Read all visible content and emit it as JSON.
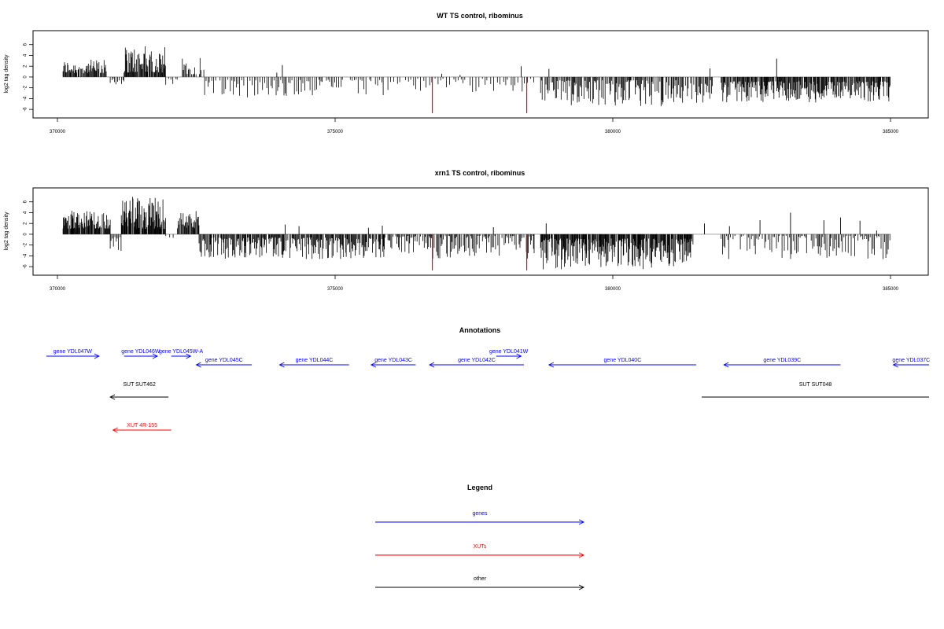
{
  "chart_data": [
    {
      "type": "bar",
      "title": "WT TS control, ribominus",
      "xlabel": "",
      "ylabel": "log2 tag density",
      "xlim": [
        370000,
        385000
      ],
      "ylim": [
        -7,
        8
      ],
      "x_ticks": [
        "370000",
        "375000",
        "380000",
        "385000"
      ],
      "y_ticks": [
        "6",
        "4",
        "2",
        "0",
        "-2",
        "-4",
        "-6"
      ],
      "bar_color": "#000000",
      "highlight_color": "#ff0000",
      "segments": [
        {
          "from": 370100,
          "to": 370880,
          "sign": 1,
          "min": 0.7,
          "max": 3.2,
          "density": 1.2
        },
        {
          "from": 370950,
          "to": 371200,
          "sign": -1,
          "min": 0.3,
          "max": 2.5,
          "density": 0.5
        },
        {
          "from": 371200,
          "to": 371950,
          "sign": 1,
          "min": 0.8,
          "max": 5.8,
          "density": 1.5
        },
        {
          "from": 371950,
          "to": 372200,
          "sign": -1,
          "min": 0.3,
          "max": 1.6,
          "density": 0.4
        },
        {
          "from": 372250,
          "to": 372650,
          "sign": 1,
          "min": 0.5,
          "max": 3.6,
          "density": 0.8
        },
        {
          "from": 372650,
          "to": 375900,
          "sign": -1,
          "min": 0.5,
          "max": 3.8,
          "density": 0.45
        },
        {
          "from": 375950,
          "to": 378600,
          "sign": -1,
          "min": 0.3,
          "max": 2.8,
          "density": 0.3
        },
        {
          "from": 378700,
          "to": 381800,
          "sign": -1,
          "min": 0.6,
          "max": 5.5,
          "density": 0.9
        },
        {
          "from": 381950,
          "to": 385000,
          "sign": -1,
          "min": 0.8,
          "max": 4.8,
          "density": 1.3
        }
      ],
      "extra_bars": [
        {
          "x": 374050,
          "y": 2.2
        },
        {
          "x": 373950,
          "y": 0.8
        },
        {
          "x": 376920,
          "y": 0.6
        },
        {
          "x": 377250,
          "y": 0.4
        },
        {
          "x": 378350,
          "y": 2.0
        },
        {
          "x": 378850,
          "y": 1.5
        },
        {
          "x": 381750,
          "y": 1.6
        },
        {
          "x": 382950,
          "y": 3.4
        }
      ],
      "highlights": [
        {
          "x": 376750,
          "y": -6.7
        },
        {
          "x": 378450,
          "y": -6.7
        }
      ]
    },
    {
      "type": "bar",
      "title": "xrn1 TS control, ribominus",
      "xlabel": "",
      "ylabel": "log2 tag density",
      "xlim": [
        370000,
        385000
      ],
      "ylim": [
        -7,
        8
      ],
      "x_ticks": [
        "370000",
        "375000",
        "380000",
        "385000"
      ],
      "y_ticks": [
        "6",
        "4",
        "2",
        "0",
        "-2",
        "-4",
        "-6"
      ],
      "bar_color": "#000000",
      "highlight_color": "#ff0000",
      "segments": [
        {
          "from": 370100,
          "to": 370950,
          "sign": 1,
          "min": 1.0,
          "max": 4.4,
          "density": 1.6
        },
        {
          "from": 370950,
          "to": 371150,
          "sign": -1,
          "min": 0.5,
          "max": 3.2,
          "density": 0.8
        },
        {
          "from": 371150,
          "to": 371950,
          "sign": 1,
          "min": 1.0,
          "max": 7.0,
          "density": 1.8
        },
        {
          "from": 371950,
          "to": 372100,
          "sign": -1,
          "min": 0.3,
          "max": 1.5,
          "density": 0.5
        },
        {
          "from": 372150,
          "to": 372550,
          "sign": 1,
          "min": 1.0,
          "max": 4.6,
          "density": 1.4
        },
        {
          "from": 372550,
          "to": 375900,
          "sign": -1,
          "min": 0.6,
          "max": 4.6,
          "density": 1.2
        },
        {
          "from": 375950,
          "to": 378600,
          "sign": -1,
          "min": 0.3,
          "max": 4.5,
          "density": 0.8
        },
        {
          "from": 378700,
          "to": 381450,
          "sign": -1,
          "min": 0.8,
          "max": 6.5,
          "density": 1.6
        },
        {
          "from": 381950,
          "to": 385000,
          "sign": -1,
          "min": 0.3,
          "max": 4.6,
          "density": 0.6
        }
      ],
      "extra_bars": [
        {
          "x": 374100,
          "y": 1.8
        },
        {
          "x": 374350,
          "y": 1.5
        },
        {
          "x": 375600,
          "y": 1.2
        },
        {
          "x": 375850,
          "y": 1.6
        },
        {
          "x": 377850,
          "y": 1.3
        },
        {
          "x": 378800,
          "y": 2.0
        },
        {
          "x": 381650,
          "y": 2.0
        },
        {
          "x": 382100,
          "y": 1.5
        },
        {
          "x": 382650,
          "y": 2.6
        },
        {
          "x": 383200,
          "y": 4.0
        },
        {
          "x": 383800,
          "y": 2.6
        },
        {
          "x": 384100,
          "y": 3.1
        },
        {
          "x": 384450,
          "y": 2.5
        },
        {
          "x": 384750,
          "y": 0.7
        }
      ],
      "highlights": [
        {
          "x": 376750,
          "y": -6.7
        },
        {
          "x": 378450,
          "y": -6.7
        }
      ]
    }
  ],
  "annotations": {
    "title": "Annotations",
    "genes": [
      {
        "label": "gene YDL047W",
        "start": 369800,
        "end": 370750,
        "dir": "+",
        "row": 0
      },
      {
        "label": "gene YDL046W",
        "start": 371200,
        "end": 371800,
        "dir": "+",
        "row": 0
      },
      {
        "label": "gene YDL045W-A",
        "start": 372050,
        "end": 372400,
        "dir": "+",
        "row": 0
      },
      {
        "label": "gene YDL041W",
        "start": 377900,
        "end": 378350,
        "dir": "+",
        "row": 0
      },
      {
        "label": "gene YDL045C",
        "start": 372500,
        "end": 373500,
        "dir": "-",
        "row": 1
      },
      {
        "label": "gene YDL044C",
        "start": 374000,
        "end": 375250,
        "dir": "-",
        "row": 1
      },
      {
        "label": "gene YDL043C",
        "start": 375650,
        "end": 376450,
        "dir": "-",
        "row": 1
      },
      {
        "label": "gene YDL042C",
        "start": 376700,
        "end": 378400,
        "dir": "-",
        "row": 1
      },
      {
        "label": "gene YDL040C",
        "start": 378850,
        "end": 381500,
        "dir": "-",
        "row": 1
      },
      {
        "label": "gene YDL039C",
        "start": 382000,
        "end": 384100,
        "dir": "-",
        "row": 1
      },
      {
        "label": "gene YDL037C",
        "start": 385050,
        "end": 386000,
        "dir": "-",
        "row": 1
      }
    ],
    "suts": [
      {
        "label": "SUT SUT462",
        "start": 370950,
        "end": 372000,
        "dir": "-",
        "row": 2
      },
      {
        "label": "SUT SUT048",
        "start": 381600,
        "end": 386100,
        "dir": "none",
        "row": 2
      }
    ],
    "xuts": [
      {
        "label": "XUT 4R-155",
        "start": 371000,
        "end": 372050,
        "dir": "-",
        "row": 3
      }
    ]
  },
  "legend": {
    "title": "Legend",
    "items": [
      {
        "label": "genes",
        "color": "#0000ff"
      },
      {
        "label": "XUTs",
        "color": "#ff0000"
      },
      {
        "label": "other",
        "color": "#000000"
      }
    ]
  },
  "colors": {
    "gene": "#0000ff",
    "xut": "#ff0000",
    "other": "#000000",
    "axis": "#000000",
    "baseline": "#999999"
  }
}
